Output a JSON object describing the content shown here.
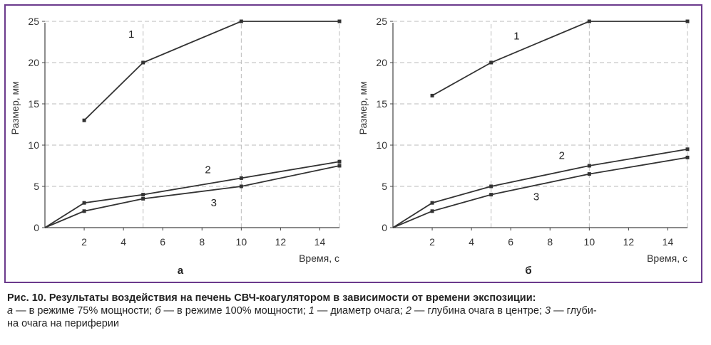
{
  "chart_data": [
    {
      "type": "line",
      "panel_label": "а",
      "xlabel": "Время, с",
      "ylabel": "Размер, мм",
      "xlim": [
        0,
        15
      ],
      "ylim": [
        0,
        25
      ],
      "xticks": [
        2,
        4,
        6,
        8,
        10,
        12,
        14
      ],
      "yticks": [
        0,
        5,
        10,
        15,
        20,
        25
      ],
      "grid_x": [
        5,
        10
      ],
      "grid_y": [
        5,
        10,
        15,
        20,
        25
      ],
      "series": [
        {
          "name": "1",
          "x": [
            2,
            5,
            10,
            15
          ],
          "y": [
            13,
            20,
            25,
            25
          ]
        },
        {
          "name": "2",
          "x": [
            0,
            2,
            5,
            10,
            15
          ],
          "y": [
            0,
            3,
            4,
            6,
            8
          ]
        },
        {
          "name": "3",
          "x": [
            0,
            2,
            5,
            10,
            15
          ],
          "y": [
            0,
            2,
            3.5,
            5,
            7.5
          ]
        }
      ]
    },
    {
      "type": "line",
      "panel_label": "б",
      "xlabel": "Время, с",
      "ylabel": "Размер, мм",
      "xlim": [
        0,
        15
      ],
      "ylim": [
        0,
        25
      ],
      "xticks": [
        2,
        4,
        6,
        8,
        10,
        12,
        14
      ],
      "yticks": [
        0,
        5,
        10,
        15,
        20,
        25
      ],
      "grid_x": [
        5,
        10
      ],
      "grid_y": [
        5,
        10,
        15,
        20,
        25
      ],
      "series": [
        {
          "name": "1",
          "x": [
            2,
            5,
            10,
            15
          ],
          "y": [
            16,
            20,
            25,
            25
          ]
        },
        {
          "name": "2",
          "x": [
            0,
            2,
            5,
            10,
            15
          ],
          "y": [
            0,
            3,
            5,
            7.5,
            9.5
          ]
        },
        {
          "name": "3",
          "x": [
            0,
            2,
            5,
            10,
            15
          ],
          "y": [
            0,
            2,
            4,
            6.5,
            8.5
          ]
        }
      ]
    }
  ],
  "caption": {
    "title": "Рис. 10. Результаты воздействия на печень СВЧ-коагулятором в зависимости от времени экспозиции:",
    "parts": [
      {
        "italic": "а",
        "text": " — в режиме 75% мощности; "
      },
      {
        "italic": "б",
        "text": " — в режиме 100% мощности; "
      },
      {
        "italic": "1",
        "text": " — диаметр очага; "
      },
      {
        "italic": "2",
        "text": " — глубина очага в центре; "
      },
      {
        "italic": "3",
        "text": " — глуби-"
      }
    ],
    "line3": "на очага на периферии"
  },
  "colors": {
    "frame": "#6b3a8c",
    "line": "#333333",
    "grid": "#bbbbbb",
    "axis": "#444444"
  }
}
